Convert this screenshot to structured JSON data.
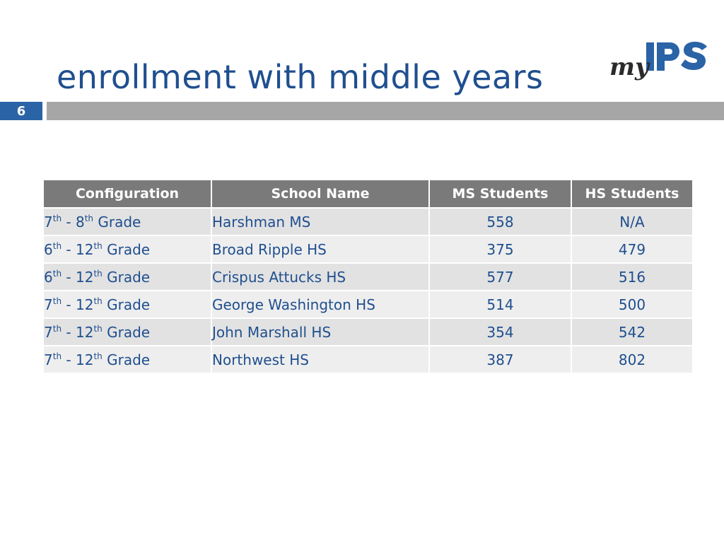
{
  "slide": {
    "title": "enrollment with middle years",
    "page_number": "6"
  },
  "logo": {
    "prefix": "my",
    "brand": "IPS"
  },
  "colors": {
    "title": "#1f4f8f",
    "badge": "#2a63a6",
    "bar": "#a6a6a6",
    "header_bg": "#7a7a7a",
    "row_odd": "#e2e2e2",
    "row_even": "#eeeeee",
    "cell_text": "#1f4f8f"
  },
  "table": {
    "headers": [
      "Configuration",
      "School Name",
      "MS Students",
      "HS Students"
    ],
    "rows": [
      {
        "from": "7",
        "from_sup": "th",
        "sep": " - ",
        "to": "8",
        "to_sup": "th",
        "suffix": " Grade",
        "school": "Harshman MS",
        "ms": "558",
        "hs": "N/A"
      },
      {
        "from": "6",
        "from_sup": "th",
        "sep": " - ",
        "to": "12",
        "to_sup": "th",
        "suffix": " Grade",
        "school": "Broad Ripple HS",
        "ms": "375",
        "hs": "479"
      },
      {
        "from": "6",
        "from_sup": "th",
        "sep": " - ",
        "to": "12",
        "to_sup": "th",
        "suffix": " Grade",
        "school": "Crispus Attucks HS",
        "ms": "577",
        "hs": "516"
      },
      {
        "from": "7",
        "from_sup": "th",
        "sep": " - ",
        "to": "12",
        "to_sup": "th",
        "suffix": " Grade",
        "school": "George Washington HS",
        "ms": "514",
        "hs": "500"
      },
      {
        "from": "7",
        "from_sup": "th",
        "sep": " - ",
        "to": "12",
        "to_sup": "th",
        "suffix": " Grade",
        "school": "John Marshall HS",
        "ms": "354",
        "hs": "542"
      },
      {
        "from": "7",
        "from_sup": "th",
        "sep": " - ",
        "to": "12",
        "to_sup": "th",
        "suffix": " Grade",
        "school": "Northwest HS",
        "ms": "387",
        "hs": "802"
      }
    ]
  }
}
